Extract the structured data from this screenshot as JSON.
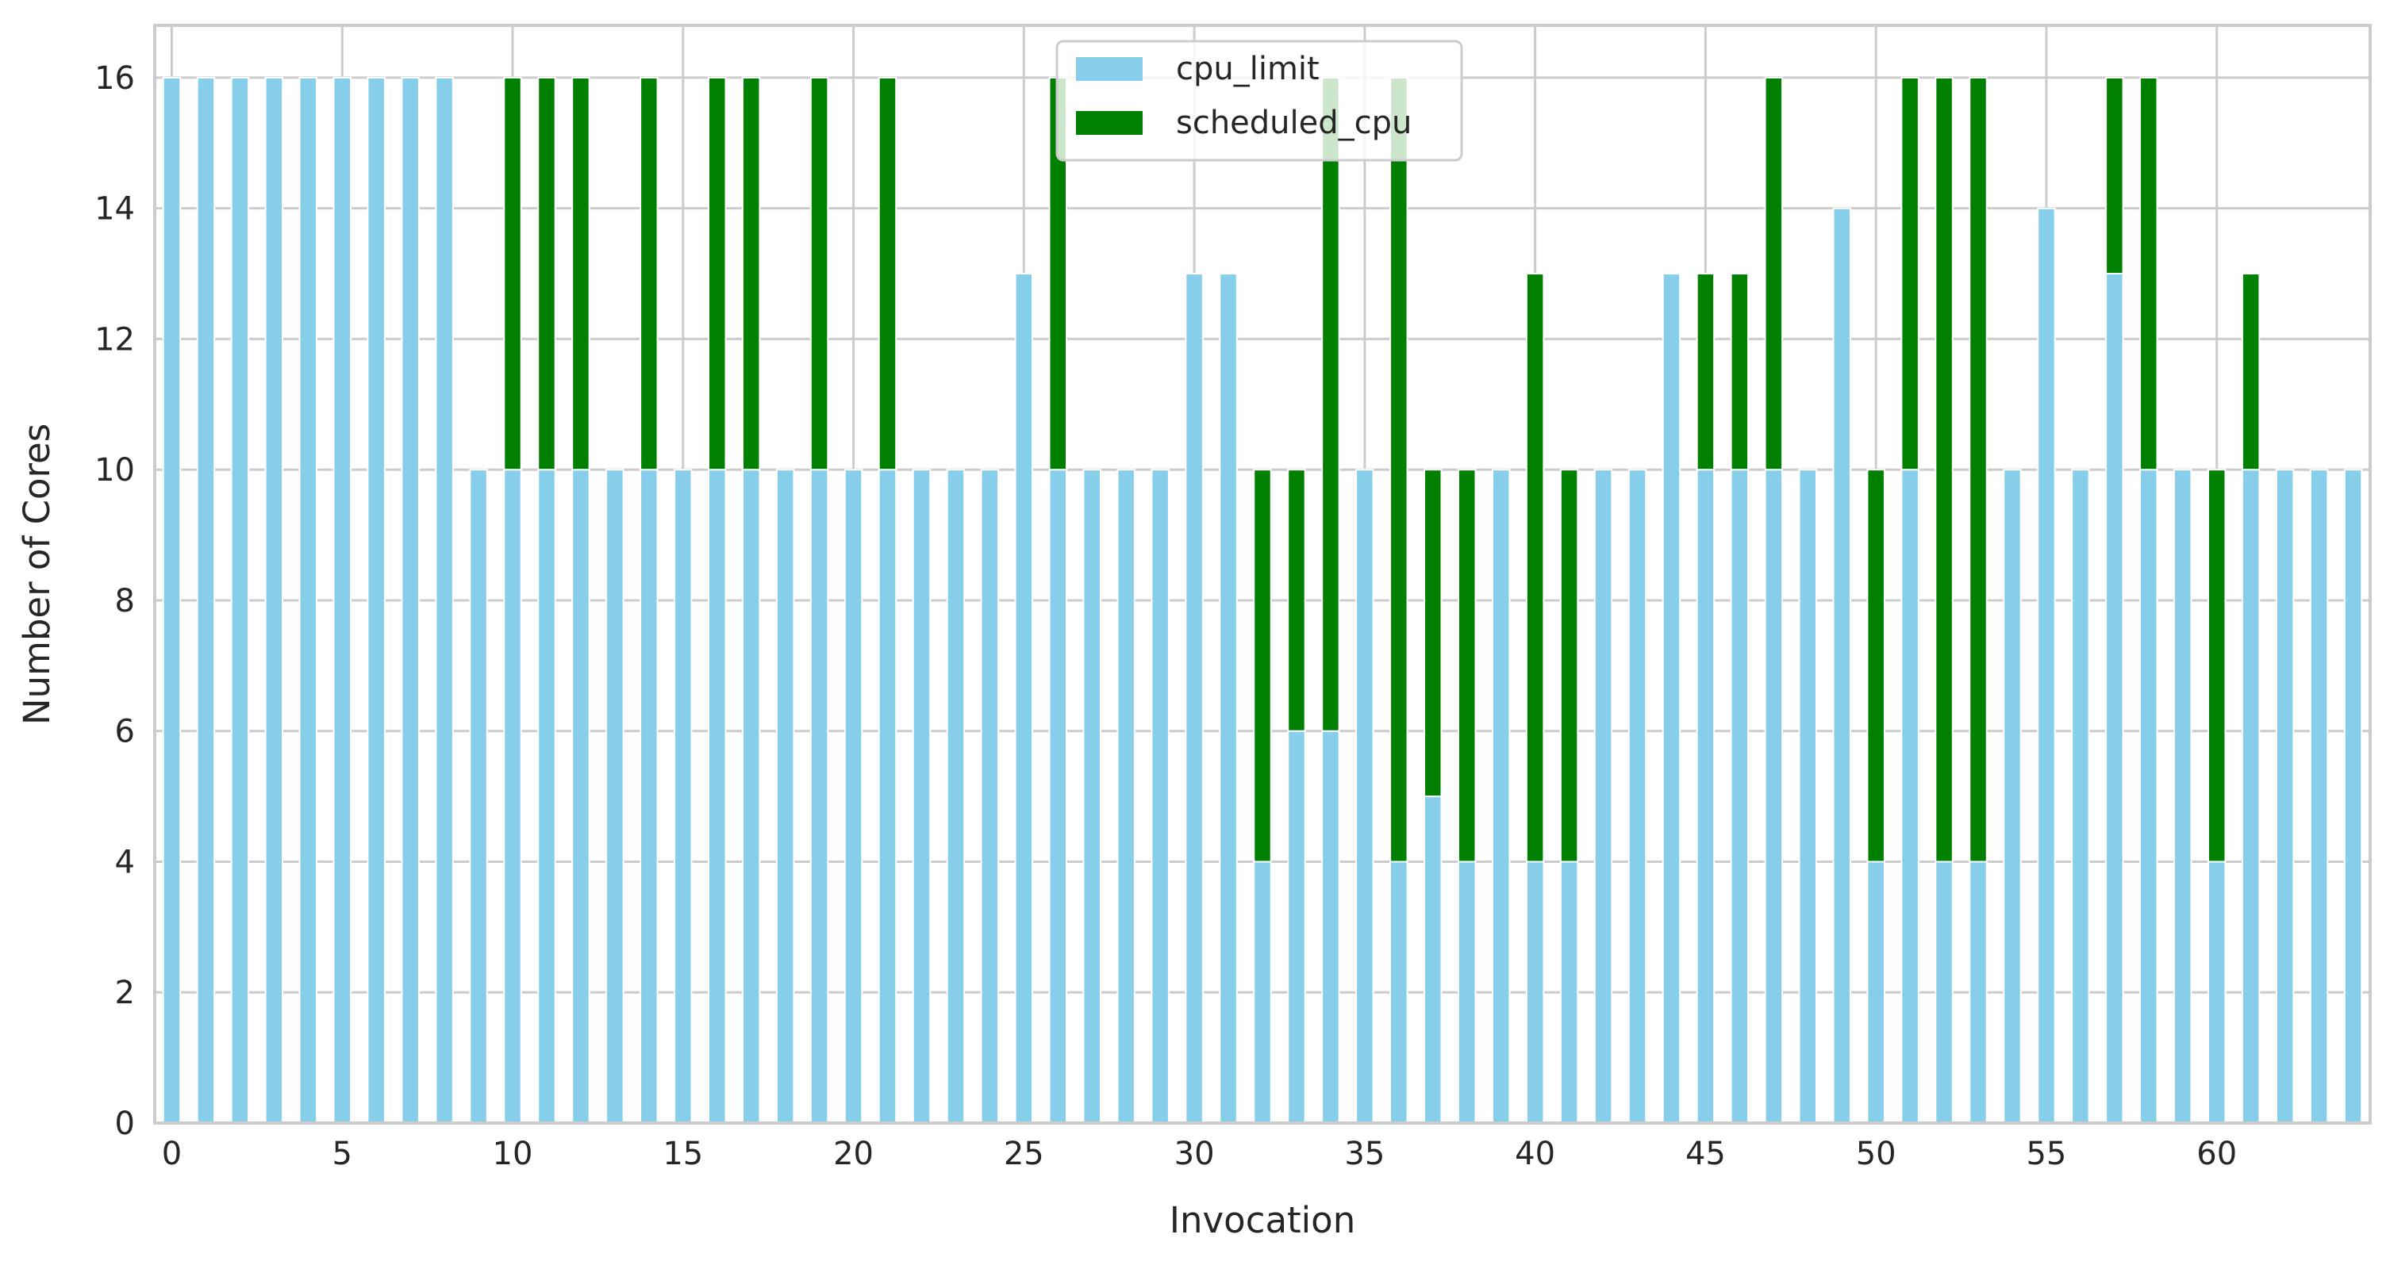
{
  "chart_data": {
    "type": "bar",
    "stacked": true,
    "title": "",
    "xlabel": "Invocation",
    "ylabel": "Number of Cores",
    "ylim": [
      0,
      16.8
    ],
    "yticks": [
      0,
      2,
      4,
      6,
      8,
      10,
      12,
      14,
      16
    ],
    "xticks": [
      0,
      5,
      10,
      15,
      20,
      25,
      30,
      35,
      40,
      45,
      50,
      55,
      60
    ],
    "grid": true,
    "legend_position": "top-center",
    "categories": [
      0,
      1,
      2,
      3,
      4,
      5,
      6,
      7,
      8,
      9,
      10,
      11,
      12,
      13,
      14,
      15,
      16,
      17,
      18,
      19,
      20,
      21,
      22,
      23,
      24,
      25,
      26,
      27,
      28,
      29,
      30,
      31,
      32,
      33,
      34,
      35,
      36,
      37,
      38,
      39,
      40,
      41,
      42,
      43,
      44,
      45,
      46,
      47,
      48,
      49,
      50,
      51,
      52,
      53,
      54,
      55,
      56,
      57,
      58,
      59,
      60,
      61,
      62,
      63,
      64
    ],
    "series": [
      {
        "name": "cpu_limit",
        "color": "#87ceeb",
        "values": [
          16,
          16,
          16,
          16,
          16,
          16,
          16,
          16,
          16,
          10,
          10,
          10,
          10,
          10,
          10,
          10,
          10,
          10,
          10,
          10,
          10,
          10,
          10,
          10,
          10,
          13,
          10,
          10,
          10,
          10,
          13,
          13,
          4,
          6,
          6,
          10,
          4,
          5,
          4,
          10,
          4,
          4,
          10,
          10,
          13,
          10,
          10,
          10,
          10,
          14,
          4,
          10,
          4,
          4,
          10,
          14,
          10,
          13,
          10,
          10,
          4,
          10,
          10,
          10,
          10
        ]
      },
      {
        "name": "scheduled_cpu",
        "color": "#008000",
        "values": [
          0,
          0,
          0,
          0,
          0,
          0,
          0,
          0,
          0,
          0,
          6,
          6,
          6,
          0,
          6,
          0,
          6,
          6,
          0,
          6,
          0,
          6,
          0,
          0,
          0,
          0,
          6,
          0,
          0,
          0,
          0,
          0,
          6,
          4,
          10,
          0,
          12,
          5,
          6,
          0,
          9,
          6,
          0,
          0,
          0,
          3,
          3,
          6,
          0,
          0,
          6,
          6,
          12,
          12,
          0,
          0,
          0,
          3,
          6,
          0,
          6,
          3,
          0,
          0,
          0
        ]
      }
    ]
  }
}
